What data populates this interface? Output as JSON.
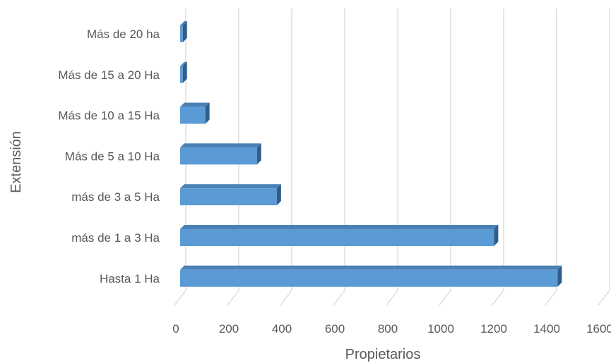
{
  "chart_data": {
    "type": "bar",
    "orientation": "horizontal",
    "style": "3d",
    "categories": [
      "Más de 20 ha",
      "Más de 15 a 20 Ha",
      "Más de 10 a 15 Ha",
      "Más de 5 a 10 Ha",
      "más de 3 a 5 Ha",
      "más de 1 a 3 Ha",
      "Hasta 1 Ha"
    ],
    "values": [
      10,
      10,
      95,
      290,
      365,
      1185,
      1425
    ],
    "xlabel": "Propietarios",
    "ylabel": "Extensión",
    "xlim": [
      0,
      1600
    ],
    "xticks": [
      "0",
      "200",
      "400",
      "600",
      "800",
      "1000",
      "1200",
      "1400",
      "1600"
    ],
    "grid": true,
    "legend": "none",
    "colors": {
      "bar_front": "#5B9BD5",
      "bar_top": "#4A81B5",
      "bar_side": "#2F5E8C",
      "grid": "#D9D9D9",
      "text": "#595959"
    }
  }
}
